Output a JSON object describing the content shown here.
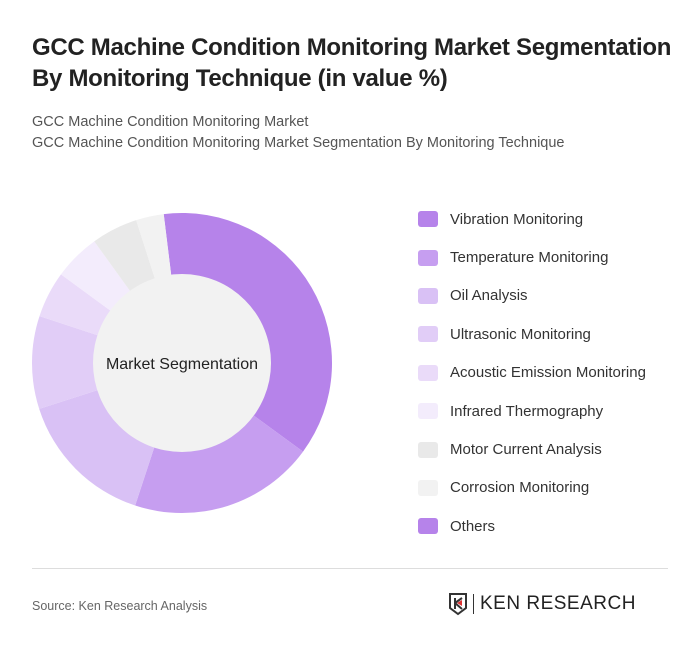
{
  "title": "GCC Machine Condition Monitoring Market Segmentation By Monitoring Technique (in value %)",
  "subtitle1": "GCC Machine Condition Monitoring Market",
  "subtitle2": "GCC Machine Condition Monitoring Market Segmentation By Monitoring Technique",
  "source": "Source: Ken Research Analysis",
  "logo_text": "KEN RESEARCH",
  "chart_data": {
    "type": "pie",
    "variant": "donut",
    "center_label": "Market Segmentation",
    "categories": [
      "Vibration Monitoring",
      "Temperature Monitoring",
      "Oil Analysis",
      "Ultrasonic Monitoring",
      "Acoustic Emission Monitoring",
      "Infrared Thermography",
      "Motor Current Analysis",
      "Corrosion Monitoring",
      "Others"
    ],
    "values": [
      37,
      20,
      15,
      10,
      5,
      5,
      5,
      3,
      0
    ],
    "colors": [
      "#b683ea",
      "#c69ef0",
      "#d9c1f5",
      "#e1cdf7",
      "#eadbf9",
      "#f3ecfc",
      "#e9e9e9",
      "#f2f2f2",
      "#b683ea"
    ],
    "legend_position": "right"
  }
}
